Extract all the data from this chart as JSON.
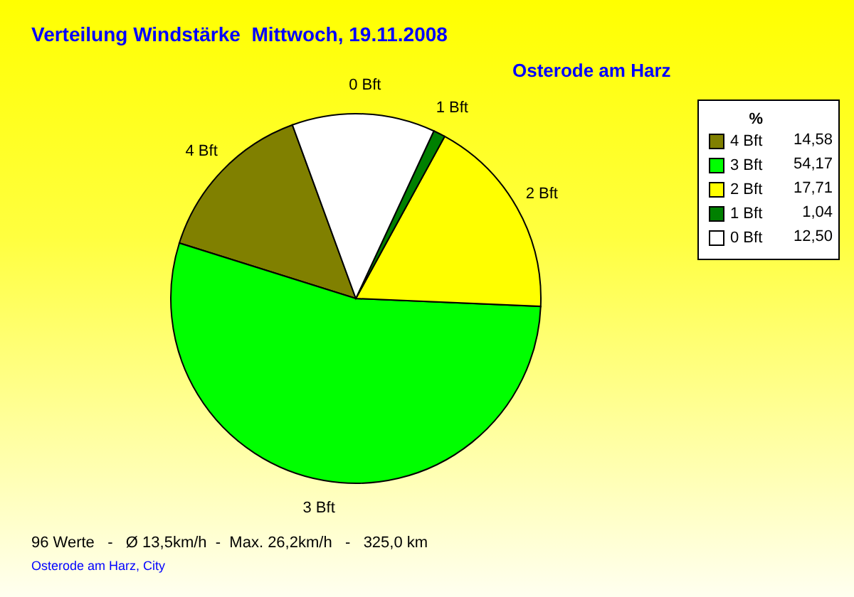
{
  "chart_data": {
    "type": "pie",
    "title": "Verteilung Windstärke  Mittwoch, 19.11.2008",
    "subtitle": "Osterode am Harz",
    "legend_title": "%",
    "categories": [
      "4 Bft",
      "3 Bft",
      "2 Bft",
      "1 Bft",
      "0 Bft"
    ],
    "values": [
      14.58,
      54.17,
      17.71,
      1.04,
      12.5
    ],
    "value_labels": [
      "14,58",
      "54,17",
      "17,71",
      "1,04",
      "12,50"
    ],
    "colors": [
      "#808000",
      "#00ff00",
      "#ffff00",
      "#008000",
      "#ffffff"
    ],
    "legend": "top right",
    "annotations": [
      "96 Werte   -   Ø 13,5km/h  -  Max. 26,2km/h   -   325,0 km",
      "Osterode am Harz, City"
    ]
  }
}
